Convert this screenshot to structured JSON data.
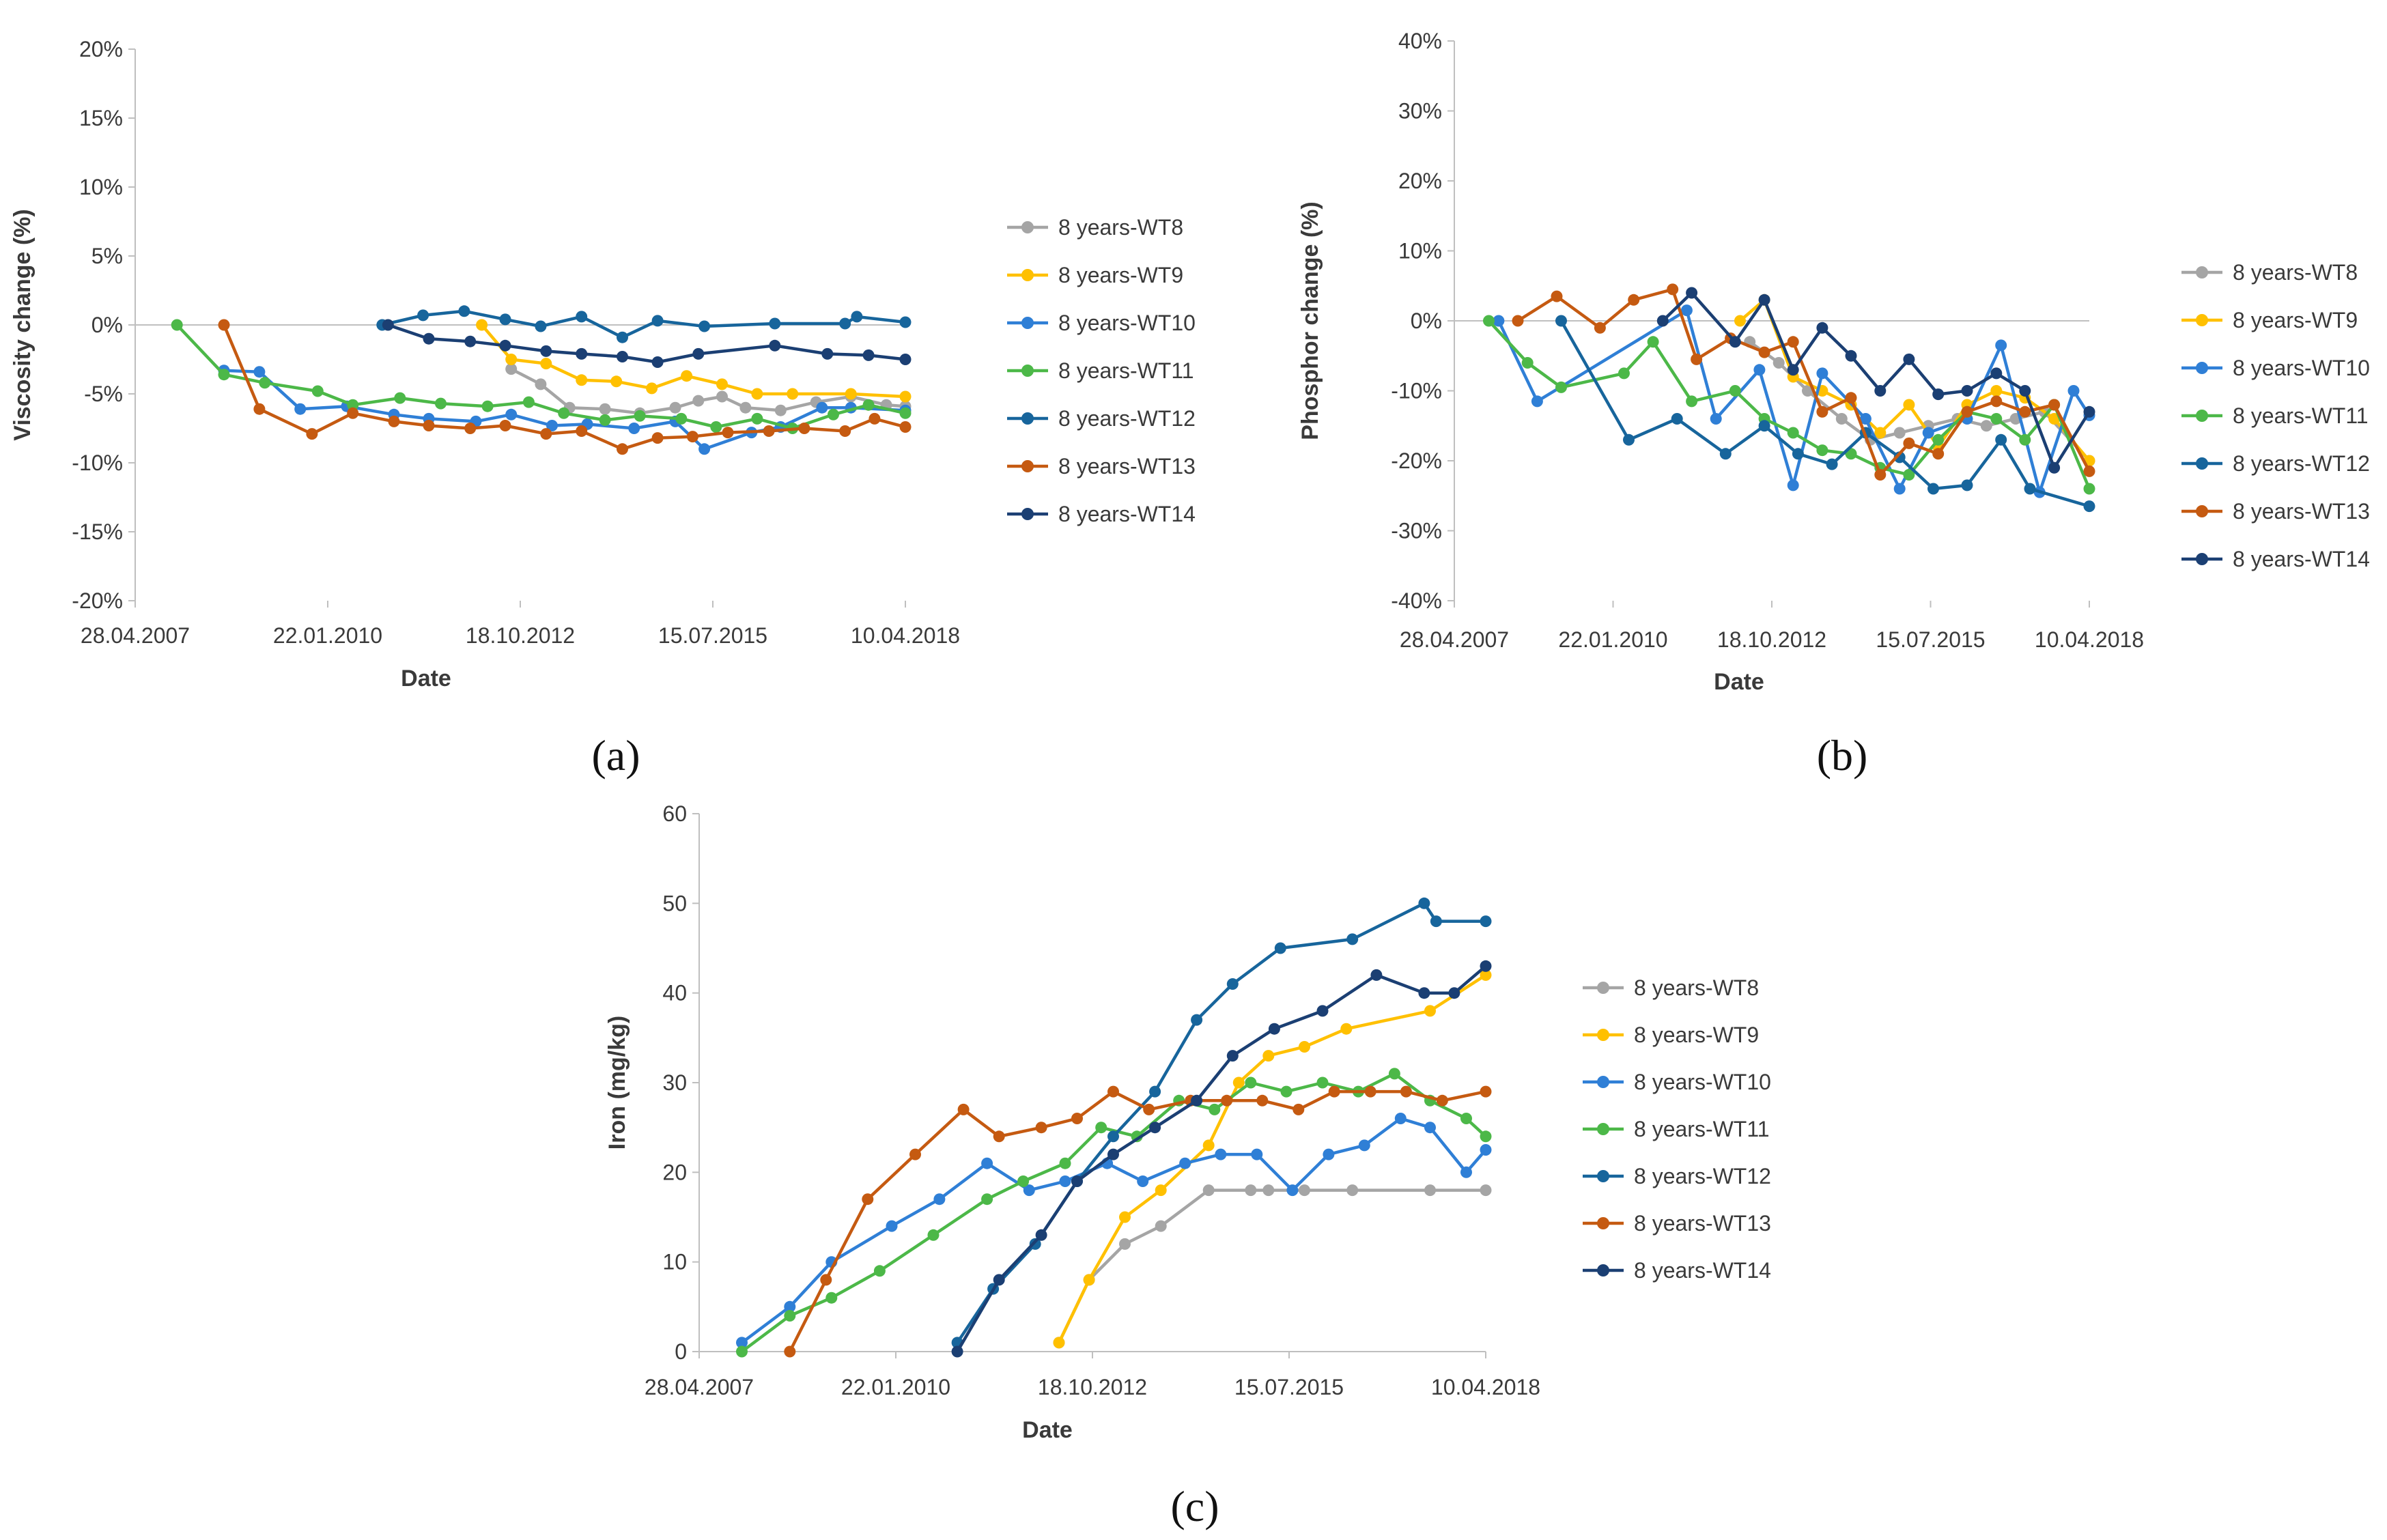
{
  "colors": {
    "WT8": "#a5a5a5",
    "WT9": "#ffc000",
    "WT10": "#2f7fd6",
    "WT11": "#4cb848",
    "WT12": "#17659c",
    "WT13": "#c55a11",
    "WT14": "#1b3f73",
    "axis": "#bfbfbf"
  },
  "chart_data": [
    {
      "id": "a",
      "panel_label": "(a)",
      "type": "line",
      "xlabel": "Date",
      "ylabel": "Viscosity change (%)",
      "x_ticks": [
        "28.04.2007",
        "22.01.2010",
        "18.10.2012",
        "15.07.2015",
        "10.04.2018"
      ],
      "y_ticks": [
        "20%",
        "15%",
        "10%",
        "5%",
        "0%",
        "-5%",
        "-10%",
        "-15%",
        "-20%"
      ],
      "xlim": [
        "28.04.2007",
        "10.04.2018"
      ],
      "ylim": [
        -20,
        20
      ],
      "y_unit": "%",
      "legend_position": "right",
      "series": [
        {
          "name": "8 years-WT8",
          "key": "WT8",
          "x": [
            "2012-09-01",
            "2013-02-01",
            "2013-07-01",
            "2014-01-01",
            "2014-07-01",
            "2015-01-01",
            "2015-05-01",
            "2015-09-01",
            "2016-01-01",
            "2016-07-01",
            "2017-01-01",
            "2017-07-01",
            "2018-01-01",
            "2018-04-10"
          ],
          "y": [
            -3.2,
            -4.3,
            -6.0,
            -6.1,
            -6.4,
            -6.0,
            -5.5,
            -5.2,
            -6.0,
            -6.2,
            -5.6,
            -5.2,
            -5.8,
            -5.9
          ]
        },
        {
          "name": "8 years-WT9",
          "key": "WT9",
          "x": [
            "2012-04-01",
            "2012-09-01",
            "2013-03-01",
            "2013-09-01",
            "2014-03-01",
            "2014-09-01",
            "2015-03-01",
            "2015-09-01",
            "2016-03-01",
            "2016-09-01",
            "2017-07-01",
            "2018-04-10"
          ],
          "y": [
            0,
            -2.5,
            -2.8,
            -4.0,
            -4.1,
            -4.6,
            -3.7,
            -4.3,
            -5.0,
            -5.0,
            -5.0,
            -5.2
          ]
        },
        {
          "name": "8 years-WT10",
          "key": "WT10",
          "x": [
            "2008-08-01",
            "2009-02-01",
            "2009-09-01",
            "2010-05-01",
            "2011-01-01",
            "2011-07-01",
            "2012-03-01",
            "2012-09-01",
            "2013-04-01",
            "2013-10-01",
            "2014-06-01",
            "2015-01-01",
            "2015-06-01",
            "2016-02-01",
            "2016-07-01",
            "2017-02-01",
            "2017-07-01",
            "2018-04-10"
          ],
          "y": [
            -3.3,
            -3.4,
            -6.1,
            -5.9,
            -6.5,
            -6.8,
            -7.0,
            -6.5,
            -7.3,
            -7.2,
            -7.5,
            -7.0,
            -9.0,
            -7.8,
            -7.4,
            -6.0,
            -6.0,
            -6.2
          ]
        },
        {
          "name": "8 years-WT11",
          "key": "WT11",
          "x": [
            "2007-12-01",
            "2008-08-01",
            "2009-03-01",
            "2009-12-01",
            "2010-06-01",
            "2011-02-01",
            "2011-09-01",
            "2012-05-01",
            "2012-12-01",
            "2013-06-01",
            "2014-01-01",
            "2014-07-01",
            "2015-02-01",
            "2015-08-01",
            "2016-03-01",
            "2016-09-01",
            "2017-04-01",
            "2017-10-01",
            "2018-04-10"
          ],
          "y": [
            0,
            -3.6,
            -4.2,
            -4.8,
            -5.8,
            -5.3,
            -5.7,
            -5.9,
            -5.6,
            -6.4,
            -6.9,
            -6.6,
            -6.8,
            -7.4,
            -6.8,
            -7.5,
            -6.5,
            -5.8,
            -6.4
          ]
        },
        {
          "name": "8 years-WT12",
          "key": "WT12",
          "x": [
            "2010-11-01",
            "2011-06-01",
            "2012-01-01",
            "2012-08-01",
            "2013-02-01",
            "2013-09-01",
            "2014-04-01",
            "2014-10-01",
            "2015-06-01",
            "2016-06-01",
            "2017-06-01",
            "2017-08-01",
            "2018-04-10"
          ],
          "y": [
            0,
            0.7,
            1.0,
            0.4,
            -0.1,
            0.6,
            -0.9,
            0.3,
            -0.1,
            0.1,
            0.1,
            0.6,
            0.2
          ]
        },
        {
          "name": "8 years-WT13",
          "key": "WT13",
          "x": [
            "2008-08-01",
            "2009-02-01",
            "2009-11-01",
            "2010-06-01",
            "2011-01-01",
            "2011-07-01",
            "2012-02-01",
            "2012-08-01",
            "2013-03-01",
            "2013-09-01",
            "2014-04-01",
            "2014-10-01",
            "2015-04-01",
            "2015-10-01",
            "2016-05-01",
            "2016-11-01",
            "2017-06-01",
            "2017-11-01",
            "2018-04-10"
          ],
          "y": [
            0,
            -6.1,
            -7.9,
            -6.4,
            -7.0,
            -7.3,
            -7.5,
            -7.3,
            -7.9,
            -7.7,
            -9.0,
            -8.2,
            -8.1,
            -7.8,
            -7.7,
            -7.5,
            -7.7,
            -6.8,
            -7.4
          ]
        },
        {
          "name": "8 years-WT14",
          "key": "WT14",
          "x": [
            "2010-12-01",
            "2011-07-01",
            "2012-02-01",
            "2012-08-01",
            "2013-03-01",
            "2013-09-01",
            "2014-04-01",
            "2014-10-01",
            "2015-05-01",
            "2016-06-01",
            "2017-03-01",
            "2017-10-01",
            "2018-04-10"
          ],
          "y": [
            0,
            -1.0,
            -1.2,
            -1.5,
            -1.9,
            -2.1,
            -2.3,
            -2.7,
            -2.1,
            -1.5,
            -2.1,
            -2.2,
            -2.5
          ]
        }
      ]
    },
    {
      "id": "b",
      "panel_label": "(b)",
      "type": "line",
      "xlabel": "Date",
      "ylabel": "Phosphor  change (%)",
      "x_ticks": [
        "28.04.2007",
        "22.01.2010",
        "18.10.2012",
        "15.07.2015",
        "10.04.2018"
      ],
      "y_ticks": [
        "40%",
        "30%",
        "20%",
        "10%",
        "0%",
        "-10%",
        "-20%",
        "-30%",
        "-40%"
      ],
      "xlim": [
        "28.04.2007",
        "10.04.2018"
      ],
      "ylim": [
        -40,
        40
      ],
      "y_unit": "%",
      "legend_position": "right",
      "series": [
        {
          "name": "8 years-WT8",
          "key": "WT8",
          "x": [
            "2012-06-01",
            "2012-12-01",
            "2013-06-01",
            "2014-01-01",
            "2014-07-01",
            "2015-01-01",
            "2015-07-01",
            "2016-01-01",
            "2016-07-01",
            "2017-01-01",
            "2017-07-01",
            "2018-04-10"
          ],
          "y": [
            -3,
            -6,
            -10,
            -14,
            -17,
            -16,
            -15,
            -14,
            -15,
            -14,
            -13,
            -20
          ]
        },
        {
          "name": "8 years-WT9",
          "key": "WT9",
          "x": [
            "2012-04-01",
            "2012-09-01",
            "2013-03-01",
            "2013-09-01",
            "2014-03-01",
            "2014-09-01",
            "2015-03-01",
            "2015-09-01",
            "2016-03-01",
            "2016-09-01",
            "2017-03-01",
            "2017-09-01",
            "2018-04-10"
          ],
          "y": [
            0,
            3,
            -8,
            -10,
            -12,
            -16,
            -12,
            -18,
            -12,
            -10,
            -11,
            -14,
            -20
          ]
        },
        {
          "name": "8 years-WT10",
          "key": "WT10",
          "x": [
            "2008-02-01",
            "2008-10-01",
            "2011-05-01",
            "2011-11-01",
            "2012-08-01",
            "2013-03-01",
            "2013-09-01",
            "2014-06-01",
            "2015-01-01",
            "2015-07-01",
            "2016-03-01",
            "2016-10-01",
            "2017-06-01",
            "2018-01-01",
            "2018-04-10"
          ],
          "y": [
            0,
            -11.5,
            1.5,
            -14,
            -7,
            -23.5,
            -7.5,
            -14,
            -24,
            -16,
            -14,
            -3.5,
            -24.5,
            -10,
            -13.5
          ]
        },
        {
          "name": "8 years-WT11",
          "key": "WT11",
          "x": [
            "2007-12-01",
            "2008-08-01",
            "2009-03-01",
            "2010-04-01",
            "2010-10-01",
            "2011-06-01",
            "2012-03-01",
            "2012-09-01",
            "2013-03-01",
            "2013-09-01",
            "2014-03-01",
            "2014-09-01",
            "2015-03-01",
            "2015-09-01",
            "2016-03-01",
            "2016-09-01",
            "2017-03-01",
            "2017-09-01",
            "2018-04-10"
          ],
          "y": [
            0,
            -6,
            -9.5,
            -7.5,
            -3,
            -11.5,
            -10,
            -14,
            -16,
            -18.5,
            -19,
            -21,
            -22,
            -17,
            -13,
            -14,
            -17,
            -12,
            -24
          ]
        },
        {
          "name": "8 years-WT12",
          "key": "WT12",
          "x": [
            "2009-03-01",
            "2010-05-01",
            "2011-03-01",
            "2012-01-01",
            "2012-09-01",
            "2013-04-01",
            "2013-11-01",
            "2014-06-01",
            "2015-01-01",
            "2015-08-01",
            "2016-03-01",
            "2016-10-01",
            "2017-04-01",
            "2018-04-10"
          ],
          "y": [
            0,
            -17,
            -14,
            -19,
            -15,
            -19,
            -20.5,
            -16,
            -19.5,
            -24,
            -23.5,
            -17,
            -24,
            -26.5
          ]
        },
        {
          "name": "8 years-WT13",
          "key": "WT13",
          "x": [
            "2008-06-01",
            "2009-02-01",
            "2009-11-01",
            "2010-06-01",
            "2011-02-01",
            "2011-07-01",
            "2012-02-01",
            "2012-09-01",
            "2013-03-01",
            "2013-09-01",
            "2014-03-01",
            "2014-09-01",
            "2015-03-01",
            "2015-09-01",
            "2016-03-01",
            "2016-09-01",
            "2017-03-01",
            "2017-09-01",
            "2018-04-10"
          ],
          "y": [
            0,
            3.5,
            -1,
            3,
            4.5,
            -5.5,
            -2.5,
            -4.5,
            -3,
            -13,
            -11,
            -22,
            -17.5,
            -19,
            -13,
            -11.5,
            -13,
            -12,
            -21.5
          ]
        },
        {
          "name": "8 years-WT14",
          "key": "WT14",
          "x": [
            "2010-12-01",
            "2011-06-01",
            "2012-03-01",
            "2012-09-01",
            "2013-03-01",
            "2013-09-01",
            "2014-03-01",
            "2014-09-01",
            "2015-03-01",
            "2015-09-01",
            "2016-03-01",
            "2016-09-01",
            "2017-03-01",
            "2017-09-01",
            "2018-04-10"
          ],
          "y": [
            0,
            4,
            -3,
            3,
            -7,
            -1,
            -5,
            -10,
            -5.5,
            -10.5,
            -10,
            -7.5,
            -10,
            -21,
            -13
          ]
        }
      ]
    },
    {
      "id": "c",
      "panel_label": "(c)",
      "type": "line",
      "xlabel": "Date",
      "ylabel": "Iron (mg/kg)",
      "x_ticks": [
        "28.04.2007",
        "22.01.2010",
        "18.10.2012",
        "15.07.2015",
        "10.04.2018"
      ],
      "y_ticks": [
        "60",
        "50",
        "40",
        "30",
        "20",
        "10",
        "0"
      ],
      "xlim": [
        "28.04.2007",
        "10.04.2018"
      ],
      "ylim": [
        0,
        60
      ],
      "legend_position": "right",
      "series": [
        {
          "name": "8 years-WT8",
          "key": "WT8",
          "x": [
            "2012-05-01",
            "2012-10-01",
            "2013-04-01",
            "2013-10-01",
            "2014-06-01",
            "2015-01-01",
            "2015-04-01",
            "2015-10-01",
            "2016-06-01",
            "2017-07-01",
            "2018-04-10"
          ],
          "y": [
            1,
            8,
            12,
            14,
            18,
            18,
            18,
            18,
            18,
            18,
            18
          ]
        },
        {
          "name": "8 years-WT9",
          "key": "WT9",
          "x": [
            "2012-05-01",
            "2012-10-01",
            "2013-04-01",
            "2013-10-01",
            "2014-06-01",
            "2014-11-01",
            "2015-04-01",
            "2015-10-01",
            "2016-05-01",
            "2017-07-01",
            "2018-04-10"
          ],
          "y": [
            1,
            8,
            15,
            18,
            23,
            30,
            33,
            34,
            36,
            38,
            42
          ]
        },
        {
          "name": "8 years-WT10",
          "key": "WT10",
          "x": [
            "2007-12-01",
            "2008-08-01",
            "2009-03-01",
            "2010-01-01",
            "2010-09-01",
            "2011-05-01",
            "2011-12-01",
            "2012-06-01",
            "2013-01-01",
            "2013-07-01",
            "2014-02-01",
            "2014-08-01",
            "2015-02-01",
            "2015-08-01",
            "2016-02-01",
            "2016-08-01",
            "2017-02-01",
            "2017-07-01",
            "2018-01-01",
            "2018-04-10"
          ],
          "y": [
            1,
            5,
            10,
            14,
            17,
            21,
            18,
            19,
            21,
            19,
            21,
            22,
            22,
            18,
            22,
            23,
            26,
            25,
            20,
            22.5
          ]
        },
        {
          "name": "8 years-WT11",
          "key": "WT11",
          "x": [
            "2007-12-01",
            "2008-08-01",
            "2009-03-01",
            "2009-11-01",
            "2010-08-01",
            "2011-05-01",
            "2011-11-01",
            "2012-06-01",
            "2012-12-01",
            "2013-06-01",
            "2014-01-01",
            "2014-07-01",
            "2015-01-01",
            "2015-07-01",
            "2016-01-01",
            "2016-07-01",
            "2017-01-01",
            "2017-07-01",
            "2018-01-01",
            "2018-04-10"
          ],
          "y": [
            0,
            4,
            6,
            9,
            13,
            17,
            19,
            21,
            25,
            24,
            28,
            27,
            30,
            29,
            30,
            29,
            31,
            28,
            26,
            24
          ]
        },
        {
          "name": "8 years-WT12",
          "key": "WT12",
          "x": [
            "2010-12-01",
            "2011-06-01",
            "2012-01-01",
            "2012-08-01",
            "2013-02-01",
            "2013-09-01",
            "2014-04-01",
            "2014-10-01",
            "2015-06-01",
            "2016-06-01",
            "2017-06-01",
            "2017-08-01",
            "2018-04-10"
          ],
          "y": [
            1,
            7,
            12,
            19,
            24,
            29,
            37,
            41,
            45,
            46,
            50,
            48,
            48
          ]
        },
        {
          "name": "8 years-WT13",
          "key": "WT13",
          "x": [
            "2008-08-01",
            "2009-02-01",
            "2009-09-01",
            "2010-05-01",
            "2011-01-01",
            "2011-07-01",
            "2012-02-01",
            "2012-08-01",
            "2013-02-01",
            "2013-08-01",
            "2014-03-01",
            "2014-09-01",
            "2015-03-01",
            "2015-09-01",
            "2016-03-01",
            "2016-09-01",
            "2017-03-01",
            "2017-09-01",
            "2018-04-10"
          ],
          "y": [
            0,
            8,
            17,
            22,
            27,
            24,
            25,
            26,
            29,
            27,
            28,
            28,
            28,
            27,
            29,
            29,
            29,
            28,
            29
          ]
        },
        {
          "name": "8 years-WT14",
          "key": "WT14",
          "x": [
            "2010-12-01",
            "2011-07-01",
            "2012-02-01",
            "2012-08-01",
            "2013-02-01",
            "2013-09-01",
            "2014-04-01",
            "2014-10-01",
            "2015-05-01",
            "2016-01-01",
            "2016-10-01",
            "2017-06-01",
            "2017-11-01",
            "2018-04-10"
          ],
          "y": [
            0,
            8,
            13,
            19,
            22,
            25,
            28,
            33,
            36,
            38,
            42,
            40,
            40,
            43
          ]
        }
      ]
    }
  ]
}
